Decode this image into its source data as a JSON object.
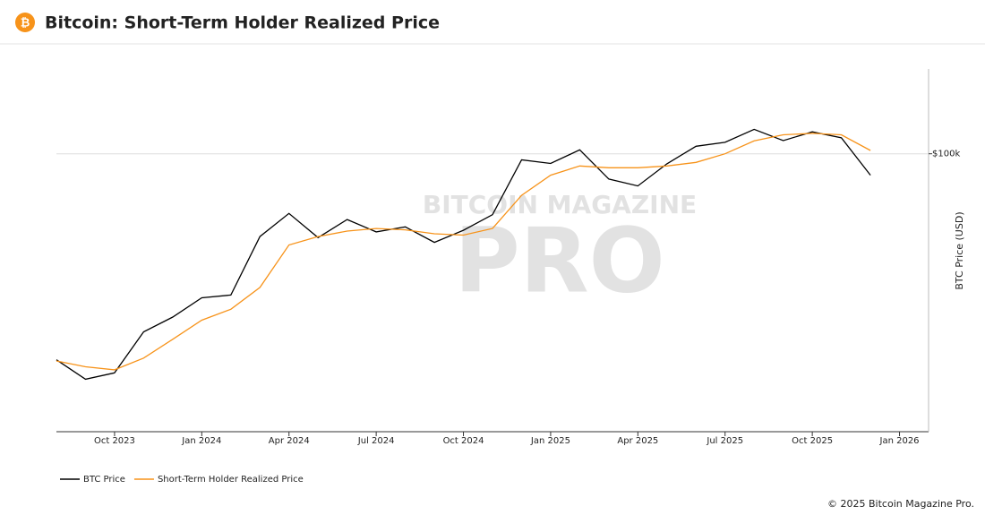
{
  "header": {
    "icon": "₿",
    "title": "Bitcoin: Short-Term Holder Realized Price"
  },
  "chart_data": {
    "type": "line",
    "watermark": [
      "BITCOIN MAGAZINE",
      "PRO"
    ],
    "y_label": "BTC Price (USD)",
    "x": [
      "2023-08",
      "2023-09",
      "2023-10",
      "2023-11",
      "2023-12",
      "2024-01",
      "2024-02",
      "2024-03",
      "2024-04",
      "2024-05",
      "2024-06",
      "2024-07",
      "2024-08",
      "2024-09",
      "2024-10",
      "2024-11",
      "2024-12",
      "2025-01",
      "2025-02",
      "2025-03",
      "2025-04",
      "2025-05",
      "2025-06",
      "2025-07",
      "2025-08",
      "2025-09",
      "2025-10",
      "2025-11",
      "2025-12"
    ],
    "xlim": [
      "2023-08",
      "2026-02"
    ],
    "xticks": [
      {
        "value": "2023-10",
        "label": "Oct 2023"
      },
      {
        "value": "2024-01",
        "label": "Jan 2024"
      },
      {
        "value": "2024-04",
        "label": "Apr 2024"
      },
      {
        "value": "2024-07",
        "label": "Jul 2024"
      },
      {
        "value": "2024-10",
        "label": "Oct 2024"
      },
      {
        "value": "2025-01",
        "label": "Jan 2025"
      },
      {
        "value": "2025-04",
        "label": "Apr 2025"
      },
      {
        "value": "2025-07",
        "label": "Jul 2025"
      },
      {
        "value": "2025-10",
        "label": "Oct 2025"
      },
      {
        "value": "2026-01",
        "label": "Jan 2026"
      }
    ],
    "ylim": [
      19000,
      166000
    ],
    "yticks": [
      {
        "value": 100000,
        "label": "$100k"
      }
    ],
    "log_scale": true,
    "grid": true,
    "legend": "bottom-left",
    "series": [
      {
        "name": "BTC Price",
        "color": "#000000",
        "values": [
          29200,
          26000,
          27000,
          34500,
          37700,
          42300,
          43000,
          61000,
          70000,
          60600,
          67500,
          62700,
          64600,
          58900,
          63300,
          69500,
          96400,
          94400,
          102400,
          86000,
          82500,
          94200,
          104600,
          107100,
          115700,
          108200,
          114000,
          110000,
          88000
        ]
      },
      {
        "name": "Short-Term Holder Realized Price",
        "color": "#f7931a",
        "values": [
          29000,
          28000,
          27500,
          29500,
          33000,
          37000,
          39500,
          45000,
          58000,
          61000,
          63000,
          64000,
          63500,
          62000,
          61500,
          64000,
          78000,
          88000,
          93000,
          92000,
          92000,
          93000,
          95000,
          100000,
          108000,
          112000,
          113000,
          112000,
          102000
        ]
      }
    ]
  },
  "footer": {
    "copyright": "© 2025 Bitcoin Magazine Pro."
  }
}
